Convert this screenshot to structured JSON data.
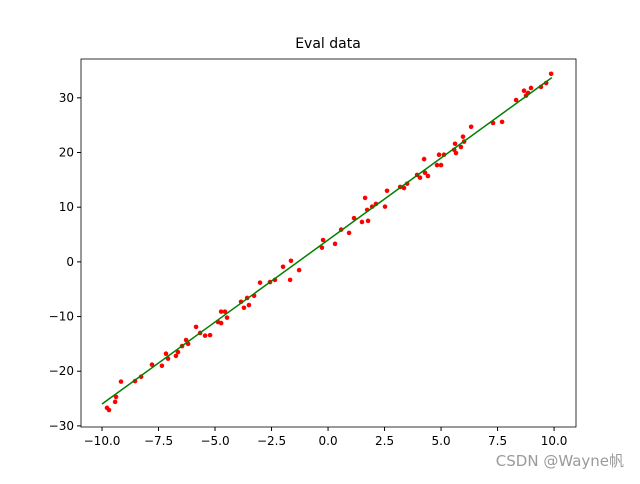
{
  "chart_data": {
    "type": "scatter",
    "title": "Eval data",
    "watermark": "CSDN @Wayne帆",
    "xlim": [
      -10.93,
      10.97
    ],
    "ylim": [
      -30.2,
      37.1
    ],
    "xticks": [
      {
        "value": -10,
        "label": "−10.0"
      },
      {
        "value": -7.5,
        "label": "−7.5"
      },
      {
        "value": -5,
        "label": "−5.0"
      },
      {
        "value": -2.5,
        "label": "−2.5"
      },
      {
        "value": 0,
        "label": "0.0"
      },
      2.5,
      {
        "value": 5,
        "label": "5.0"
      },
      7.5,
      {
        "value": 10,
        "label": "10.0"
      }
    ],
    "yticks": [
      {
        "value": -30,
        "label": "−30"
      },
      {
        "value": -20,
        "label": "−20"
      },
      {
        "value": -10,
        "label": "−10"
      },
      0,
      10,
      20,
      30
    ],
    "series": [
      {
        "color": "#ff0000",
        "mode": "markers",
        "x": [
          -9.78,
          -9.69,
          -9.42,
          -9.38,
          -9.16,
          -8.54,
          -8.27,
          -7.79,
          -7.35,
          -7.17,
          -7.08,
          -6.73,
          -6.64,
          -6.46,
          -6.28,
          -6.19,
          -5.84,
          -5.66,
          -5.44,
          -5.22,
          -4.87,
          -4.73,
          -4.73,
          -4.56,
          -4.47,
          -3.85,
          -3.72,
          -3.58,
          -3.5,
          -3.27,
          -3.01,
          -2.57,
          -2.35,
          -1.99,
          -1.68,
          -1.64,
          -1.28,
          -0.27,
          -0.22,
          0.31,
          0.58,
          0.93,
          1.15,
          1.5,
          1.64,
          1.73,
          1.77,
          1.95,
          2.12,
          2.52,
          2.61,
          3.19,
          3.36,
          3.5,
          3.94,
          4.07,
          4.25,
          4.29,
          4.42,
          4.82,
          4.91,
          5.0,
          5.13,
          5.58,
          5.62,
          5.66,
          5.88,
          5.97,
          6.02,
          6.33,
          7.3,
          7.7,
          8.32,
          8.67,
          8.76,
          8.85,
          8.98,
          9.42,
          9.65,
          9.87
        ],
        "values": [
          -26.7,
          -27.1,
          -25.6,
          -24.7,
          -21.9,
          -21.8,
          -21.0,
          -18.8,
          -19.0,
          -16.8,
          -17.7,
          -17.2,
          -16.5,
          -15.4,
          -14.3,
          -15.0,
          -11.9,
          -13.0,
          -13.5,
          -13.4,
          -11.0,
          -11.2,
          -9.1,
          -9.1,
          -10.2,
          -7.3,
          -8.4,
          -6.6,
          -7.9,
          -6.2,
          -3.8,
          -3.7,
          -3.3,
          -0.9,
          -3.3,
          0.2,
          -1.5,
          2.6,
          4.0,
          3.3,
          5.9,
          5.3,
          8.0,
          7.3,
          11.7,
          9.5,
          7.5,
          10.1,
          10.6,
          10.1,
          13.0,
          13.7,
          13.5,
          14.3,
          15.9,
          15.4,
          18.8,
          16.3,
          15.7,
          17.7,
          19.6,
          17.7,
          19.6,
          20.5,
          21.6,
          19.9,
          21.0,
          22.9,
          22.0,
          24.7,
          25.4,
          25.6,
          29.6,
          31.3,
          30.4,
          30.9,
          31.8,
          32.0,
          32.7,
          34.4
        ]
      },
      {
        "color": "#008000",
        "mode": "line",
        "x": [
          -10,
          9.9
        ],
        "values": [
          -26,
          33.7
        ]
      }
    ]
  }
}
